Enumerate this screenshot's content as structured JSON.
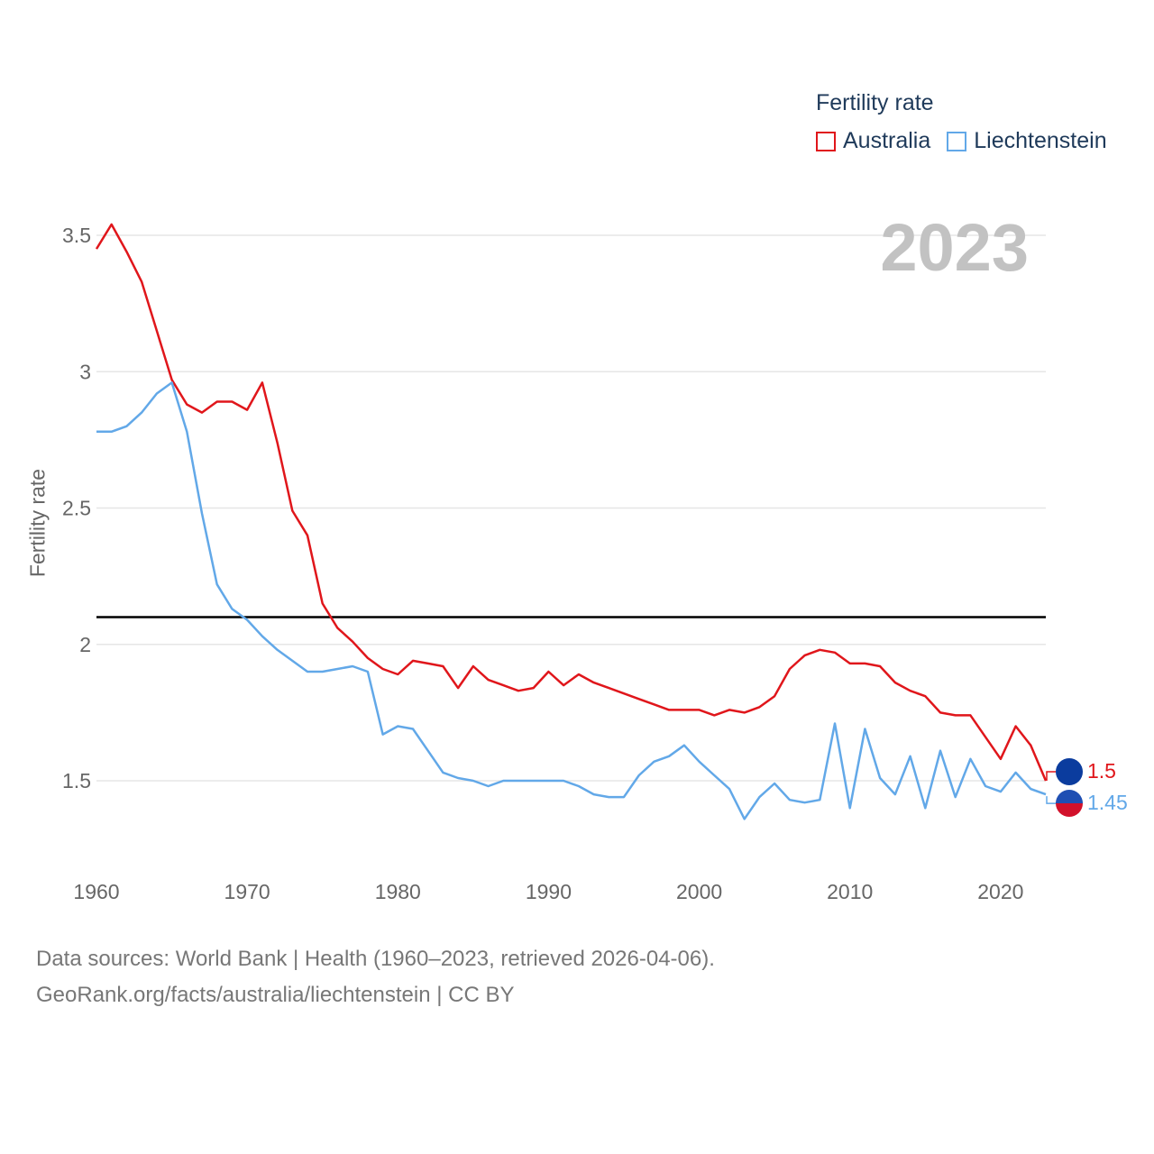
{
  "legend": {
    "title": "Fertility rate",
    "australia": "Australia",
    "liechtenstein": "Liechtenstein"
  },
  "year_label": "2023",
  "source": {
    "line1": "Data sources: World Bank | Health (1960–2023, retrieved 2026-04-06).",
    "line2": "GeoRank.org/facts/australia/liechtenstein | CC BY"
  },
  "end_labels": {
    "australia": "1.5",
    "liechtenstein": "1.45"
  },
  "colors": {
    "australia": "#e0161b",
    "liechtenstein": "#62a8e8",
    "reference": "#000000",
    "grid": "#e6e6e6",
    "axis_text": "#666666"
  },
  "chart_data": {
    "type": "line",
    "title": "Fertility rate",
    "xlabel": "",
    "ylabel": "Fertility rate",
    "xlim": [
      1960,
      2023
    ],
    "ylim": [
      1.3,
      3.7
    ],
    "x_ticks": [
      1960,
      1970,
      1980,
      1990,
      2000,
      2010,
      2020
    ],
    "y_ticks": [
      {
        "value": 1.5,
        "label": "1.5"
      },
      {
        "value": 2,
        "label": "2"
      },
      {
        "value": 2.5,
        "label": "2.5"
      },
      {
        "value": 3,
        "label": "3"
      },
      {
        "value": 3.5,
        "label": "3.5"
      }
    ],
    "reference_line": {
      "value": 2.1
    },
    "x": [
      1960,
      1961,
      1962,
      1963,
      1964,
      1965,
      1966,
      1967,
      1968,
      1969,
      1970,
      1971,
      1972,
      1973,
      1974,
      1975,
      1976,
      1977,
      1978,
      1979,
      1980,
      1981,
      1982,
      1983,
      1984,
      1985,
      1986,
      1987,
      1988,
      1989,
      1990,
      1991,
      1992,
      1993,
      1994,
      1995,
      1996,
      1997,
      1998,
      1999,
      2000,
      2001,
      2002,
      2003,
      2004,
      2005,
      2006,
      2007,
      2008,
      2009,
      2010,
      2011,
      2012,
      2013,
      2014,
      2015,
      2016,
      2017,
      2018,
      2019,
      2020,
      2021,
      2022,
      2023
    ],
    "series": [
      {
        "name": "Australia",
        "key": "australia",
        "values": [
          3.45,
          3.54,
          3.44,
          3.33,
          3.15,
          2.97,
          2.88,
          2.85,
          2.89,
          2.89,
          2.86,
          2.96,
          2.74,
          2.49,
          2.4,
          2.15,
          2.06,
          2.01,
          1.95,
          1.91,
          1.89,
          1.94,
          1.93,
          1.92,
          1.84,
          1.92,
          1.87,
          1.85,
          1.83,
          1.84,
          1.9,
          1.85,
          1.89,
          1.86,
          1.84,
          1.82,
          1.8,
          1.78,
          1.76,
          1.76,
          1.76,
          1.74,
          1.76,
          1.75,
          1.77,
          1.81,
          1.91,
          1.96,
          1.98,
          1.97,
          1.93,
          1.93,
          1.92,
          1.86,
          1.83,
          1.81,
          1.75,
          1.74,
          1.74,
          1.66,
          1.58,
          1.7,
          1.63,
          1.5
        ]
      },
      {
        "name": "Liechtenstein",
        "key": "liechtenstein",
        "values": [
          2.78,
          2.78,
          2.8,
          2.85,
          2.92,
          2.96,
          2.78,
          2.48,
          2.22,
          2.13,
          2.09,
          2.03,
          1.98,
          1.94,
          1.9,
          1.9,
          1.91,
          1.92,
          1.9,
          1.67,
          1.7,
          1.69,
          1.61,
          1.53,
          1.51,
          1.5,
          1.48,
          1.5,
          1.5,
          1.5,
          1.5,
          1.5,
          1.48,
          1.45,
          1.44,
          1.44,
          1.52,
          1.57,
          1.59,
          1.63,
          1.57,
          1.52,
          1.47,
          1.36,
          1.44,
          1.49,
          1.43,
          1.42,
          1.43,
          1.71,
          1.4,
          1.69,
          1.51,
          1.45,
          1.59,
          1.4,
          1.61,
          1.44,
          1.58,
          1.48,
          1.46,
          1.53,
          1.47,
          1.45
        ]
      }
    ]
  }
}
